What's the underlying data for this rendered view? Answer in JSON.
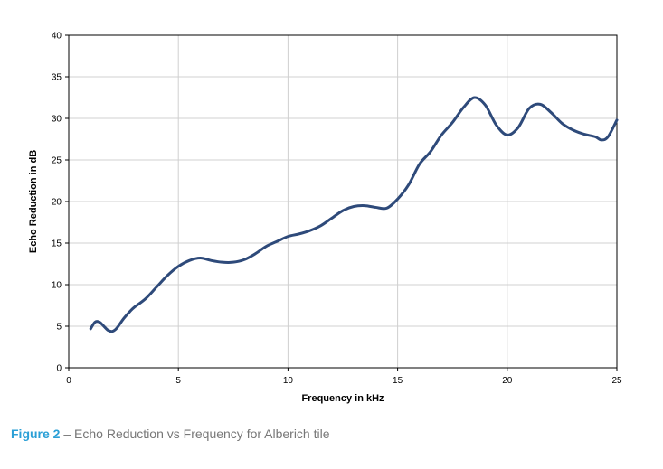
{
  "chart_data": {
    "type": "line",
    "xlabel": "Frequency in kHz",
    "ylabel": "Echo Reduction in dB",
    "xlim": [
      0,
      25
    ],
    "ylim": [
      0,
      40
    ],
    "xticks": [
      0,
      5,
      10,
      15,
      20,
      25
    ],
    "yticks": [
      0,
      5,
      10,
      15,
      20,
      25,
      30,
      35,
      40
    ],
    "grid": "vertical",
    "series": [
      {
        "color": "#2e4a7a",
        "x": [
          1.0,
          1.2,
          1.4,
          1.6,
          1.8,
          2.0,
          2.2,
          2.5,
          2.8,
          3.0,
          3.5,
          4.0,
          4.5,
          5.0,
          5.5,
          6.0,
          6.5,
          7.0,
          7.5,
          8.0,
          8.5,
          9.0,
          9.5,
          10.0,
          10.5,
          11.0,
          11.5,
          12.0,
          12.5,
          13.0,
          13.5,
          14.0,
          14.5,
          15.0,
          15.5,
          16.0,
          16.5,
          17.0,
          17.5,
          18.0,
          18.5,
          19.0,
          19.5,
          20.0,
          20.5,
          21.0,
          21.5,
          22.0,
          22.5,
          23.0,
          23.5,
          24.0,
          24.3,
          24.6,
          25.0
        ],
        "y": [
          4.7,
          5.5,
          5.5,
          5.0,
          4.5,
          4.4,
          4.8,
          5.9,
          6.8,
          7.3,
          8.3,
          9.7,
          11.1,
          12.2,
          12.9,
          13.2,
          12.9,
          12.7,
          12.7,
          13.0,
          13.7,
          14.6,
          15.2,
          15.8,
          16.1,
          16.5,
          17.1,
          18.0,
          18.9,
          19.4,
          19.5,
          19.3,
          19.2,
          20.3,
          22.0,
          24.5,
          26.0,
          28.0,
          29.5,
          31.3,
          32.5,
          31.6,
          29.2,
          28.0,
          28.9,
          31.2,
          31.7,
          30.7,
          29.4,
          28.6,
          28.1,
          27.8,
          27.4,
          27.8,
          29.8
        ]
      }
    ]
  },
  "caption": {
    "label": "Figure 2",
    "text": " – Echo Reduction vs Frequency for Alberich tile"
  }
}
